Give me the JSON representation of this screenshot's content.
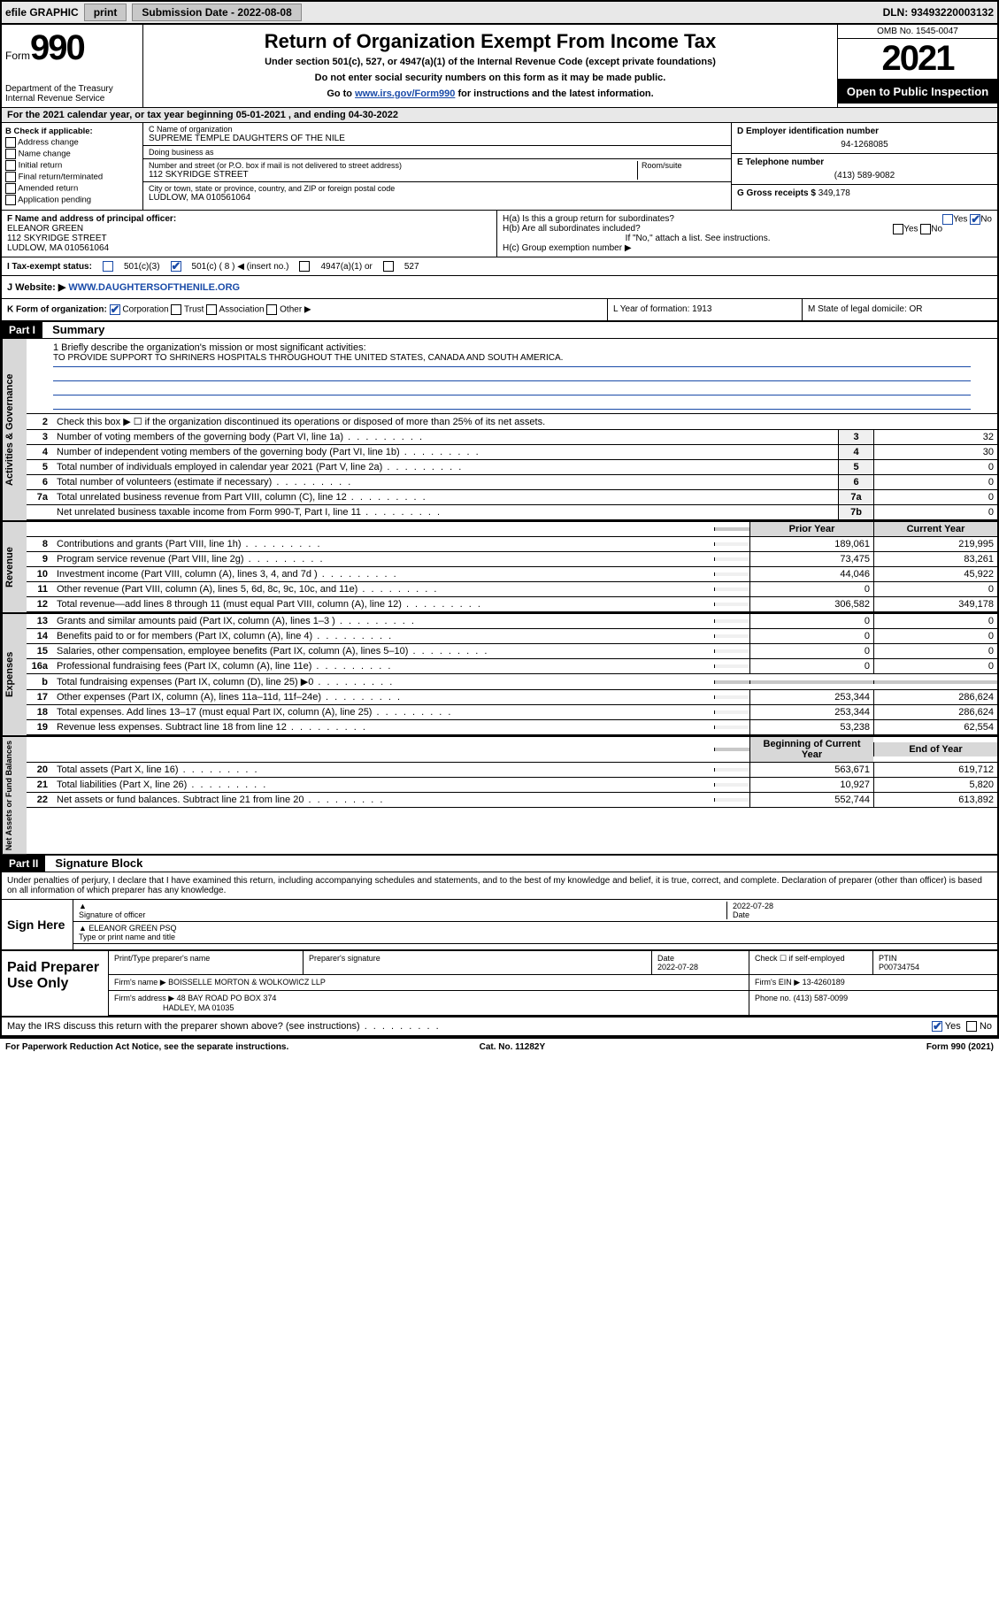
{
  "topbar": {
    "efile": "efile GRAPHIC",
    "print": "print",
    "subdate_lbl": "Submission Date - ",
    "subdate": "2022-08-08",
    "dln_lbl": "DLN: ",
    "dln": "93493220003132"
  },
  "header": {
    "form_word": "Form",
    "form_no": "990",
    "dept": "Department of the Treasury\nInternal Revenue Service",
    "title": "Return of Organization Exempt From Income Tax",
    "sub": "Under section 501(c), 527, or 4947(a)(1) of the Internal Revenue Code (except private foundations)",
    "inst1": "Do not enter social security numbers on this form as it may be made public.",
    "inst2_pre": "Go to ",
    "inst2_link": "www.irs.gov/Form990",
    "inst2_post": " for instructions and the latest information.",
    "omb": "OMB No. 1545-0047",
    "year": "2021",
    "open": "Open to Public Inspection"
  },
  "rowA": "For the 2021 calendar year, or tax year beginning 05-01-2021  , and ending 04-30-2022",
  "B": {
    "hd": "B Check if applicable:",
    "opts": [
      "Address change",
      "Name change",
      "Initial return",
      "Final return/terminated",
      "Amended return",
      "Application pending"
    ]
  },
  "C": {
    "name_lbl": "C Name of organization",
    "name": "SUPREME TEMPLE DAUGHTERS OF THE NILE",
    "dba_lbl": "Doing business as",
    "dba": "",
    "addr_lbl": "Number and street (or P.O. box if mail is not delivered to street address)",
    "room_lbl": "Room/suite",
    "addr": "112 SKYRIDGE STREET",
    "city_lbl": "City or town, state or province, country, and ZIP or foreign postal code",
    "city": "LUDLOW, MA  010561064"
  },
  "D": {
    "lbl": "D Employer identification number",
    "val": "94-1268085"
  },
  "E": {
    "lbl": "E Telephone number",
    "val": "(413) 589-9082"
  },
  "G": {
    "lbl": "G Gross receipts $",
    "val": "349,178"
  },
  "F": {
    "lbl": "F  Name and address of principal officer:",
    "name": "ELEANOR GREEN",
    "addr": "112 SKYRIDGE STREET",
    "city": "LUDLOW, MA  010561064"
  },
  "H": {
    "a": "H(a)  Is this a group return for subordinates?",
    "a_yes": "Yes",
    "a_no": "No",
    "b": "H(b)  Are all subordinates included?",
    "b_yes": "Yes",
    "b_no": "No",
    "b_note": "If \"No,\" attach a list. See instructions.",
    "c": "H(c)  Group exemption number ▶"
  },
  "I": {
    "lbl": "I   Tax-exempt status:",
    "o1": "501(c)(3)",
    "o2": "501(c) ( 8 ) ◀ (insert no.)",
    "o3": "4947(a)(1) or",
    "o4": "527"
  },
  "J": {
    "lbl": "J   Website: ▶ ",
    "val": "WWW.DAUGHTERSOFTHENILE.ORG"
  },
  "K": {
    "lbl": "K Form of organization:",
    "o": [
      "Corporation",
      "Trust",
      "Association",
      "Other ▶"
    ],
    "L": "L Year of formation: 1913",
    "M": "M State of legal domicile: OR"
  },
  "part1": {
    "hd": "Part I",
    "title": "Summary"
  },
  "mission": {
    "q": "1   Briefly describe the organization's mission or most significant activities:",
    "a": "TO PROVIDE SUPPORT TO SHRINERS HOSPITALS THROUGHOUT THE UNITED STATES, CANADA AND SOUTH AMERICA."
  },
  "gov": {
    "side": "Activities & Governance",
    "l2": "Check this box ▶ ☐  if the organization discontinued its operations or disposed of more than 25% of its net assets.",
    "rows": [
      {
        "n": "3",
        "t": "Number of voting members of the governing body (Part VI, line 1a)",
        "bn": "3",
        "v": "32"
      },
      {
        "n": "4",
        "t": "Number of independent voting members of the governing body (Part VI, line 1b)",
        "bn": "4",
        "v": "30"
      },
      {
        "n": "5",
        "t": "Total number of individuals employed in calendar year 2021 (Part V, line 2a)",
        "bn": "5",
        "v": "0"
      },
      {
        "n": "6",
        "t": "Total number of volunteers (estimate if necessary)",
        "bn": "6",
        "v": "0"
      },
      {
        "n": "7a",
        "t": "Total unrelated business revenue from Part VIII, column (C), line 12",
        "bn": "7a",
        "v": "0"
      },
      {
        "n": "",
        "t": "Net unrelated business taxable income from Form 990-T, Part I, line 11",
        "bn": "7b",
        "v": "0"
      }
    ]
  },
  "rev": {
    "side": "Revenue",
    "hd_p": "Prior Year",
    "hd_c": "Current Year",
    "rows": [
      {
        "n": "8",
        "t": "Contributions and grants (Part VIII, line 1h)",
        "p": "189,061",
        "c": "219,995"
      },
      {
        "n": "9",
        "t": "Program service revenue (Part VIII, line 2g)",
        "p": "73,475",
        "c": "83,261"
      },
      {
        "n": "10",
        "t": "Investment income (Part VIII, column (A), lines 3, 4, and 7d )",
        "p": "44,046",
        "c": "45,922"
      },
      {
        "n": "11",
        "t": "Other revenue (Part VIII, column (A), lines 5, 6d, 8c, 9c, 10c, and 11e)",
        "p": "0",
        "c": "0"
      },
      {
        "n": "12",
        "t": "Total revenue—add lines 8 through 11 (must equal Part VIII, column (A), line 12)",
        "p": "306,582",
        "c": "349,178"
      }
    ]
  },
  "exp": {
    "side": "Expenses",
    "rows": [
      {
        "n": "13",
        "t": "Grants and similar amounts paid (Part IX, column (A), lines 1–3 )",
        "p": "0",
        "c": "0"
      },
      {
        "n": "14",
        "t": "Benefits paid to or for members (Part IX, column (A), line 4)",
        "p": "0",
        "c": "0"
      },
      {
        "n": "15",
        "t": "Salaries, other compensation, employee benefits (Part IX, column (A), lines 5–10)",
        "p": "0",
        "c": "0"
      },
      {
        "n": "16a",
        "t": "Professional fundraising fees (Part IX, column (A), line 11e)",
        "p": "0",
        "c": "0"
      },
      {
        "n": "b",
        "t": "Total fundraising expenses (Part IX, column (D), line 25) ▶0",
        "p": "",
        "c": "",
        "grey": true
      },
      {
        "n": "17",
        "t": "Other expenses (Part IX, column (A), lines 11a–11d, 11f–24e)",
        "p": "253,344",
        "c": "286,624"
      },
      {
        "n": "18",
        "t": "Total expenses. Add lines 13–17 (must equal Part IX, column (A), line 25)",
        "p": "253,344",
        "c": "286,624"
      },
      {
        "n": "19",
        "t": "Revenue less expenses. Subtract line 18 from line 12",
        "p": "53,238",
        "c": "62,554"
      }
    ]
  },
  "net": {
    "side": "Net Assets or Fund Balances",
    "hd_p": "Beginning of Current Year",
    "hd_c": "End of Year",
    "rows": [
      {
        "n": "20",
        "t": "Total assets (Part X, line 16)",
        "p": "563,671",
        "c": "619,712"
      },
      {
        "n": "21",
        "t": "Total liabilities (Part X, line 26)",
        "p": "10,927",
        "c": "5,820"
      },
      {
        "n": "22",
        "t": "Net assets or fund balances. Subtract line 21 from line 20",
        "p": "552,744",
        "c": "613,892"
      }
    ]
  },
  "part2": {
    "hd": "Part II",
    "title": "Signature Block"
  },
  "perjury": "Under penalties of perjury, I declare that I have examined this return, including accompanying schedules and statements, and to the best of my knowledge and belief, it is true, correct, and complete. Declaration of preparer (other than officer) is based on all information of which preparer has any knowledge.",
  "sign": {
    "lbl": "Sign Here",
    "sig_lbl": "Signature of officer",
    "date_lbl": "Date",
    "date": "2022-07-28",
    "name": "ELEANOR GREEN  PSQ",
    "name_lbl": "Type or print name and title"
  },
  "paid": {
    "lbl": "Paid Preparer Use Only",
    "h": [
      "Print/Type preparer's name",
      "Preparer's signature",
      "Date",
      "Check ☐ if self-employed",
      "PTIN"
    ],
    "date": "2022-07-28",
    "ptin": "P00734754",
    "firm_lbl": "Firm's name    ▶",
    "firm": "BOISSELLE MORTON & WOLKOWICZ LLP",
    "ein_lbl": "Firm's EIN ▶",
    "ein": "13-4260189",
    "addr_lbl": "Firm's address ▶",
    "addr": "48 BAY ROAD PO BOX 374",
    "addr2": "HADLEY, MA  01035",
    "phone_lbl": "Phone no.",
    "phone": "(413) 587-0099"
  },
  "discuss": {
    "q": "May the IRS discuss this return with the preparer shown above? (see instructions)",
    "yes": "Yes",
    "no": "No"
  },
  "foot": {
    "l": "For Paperwork Reduction Act Notice, see the separate instructions.",
    "c": "Cat. No. 11282Y",
    "r": "Form 990 (2021)"
  },
  "colors": {
    "link": "#1a4ba8",
    "grey": "#d8d8d8"
  }
}
